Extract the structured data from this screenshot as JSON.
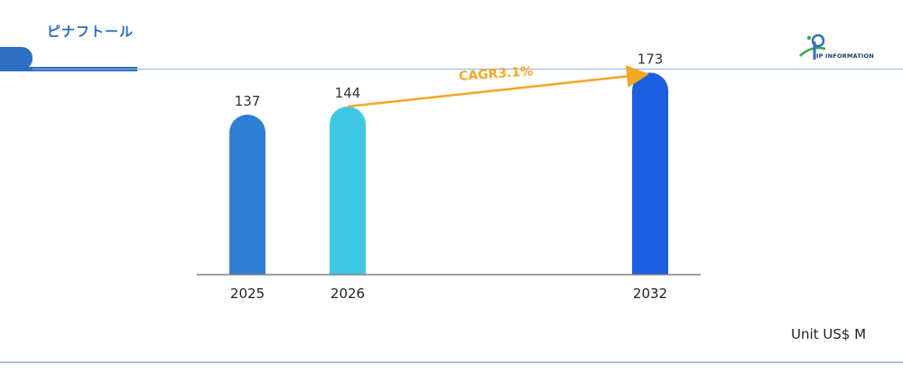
{
  "header": {
    "title": "ピナフトール",
    "logo_text": "IP INFORMATION"
  },
  "unit_label": "Unit US$ M",
  "colors": {
    "accent": "#2d6fc2",
    "cagr_arrow": "#f5a623"
  },
  "chart_data": {
    "type": "bar",
    "categories": [
      "2025",
      "2026",
      "2032"
    ],
    "values": [
      137,
      144,
      173
    ],
    "bar_colors": [
      "#2f7fd6",
      "#3ec8e6",
      "#1a5fe0"
    ],
    "annotation": {
      "text": "CAGR3.1%",
      "from": "2026",
      "to": "2032"
    },
    "title": "",
    "xlabel": "",
    "ylabel": ""
  }
}
